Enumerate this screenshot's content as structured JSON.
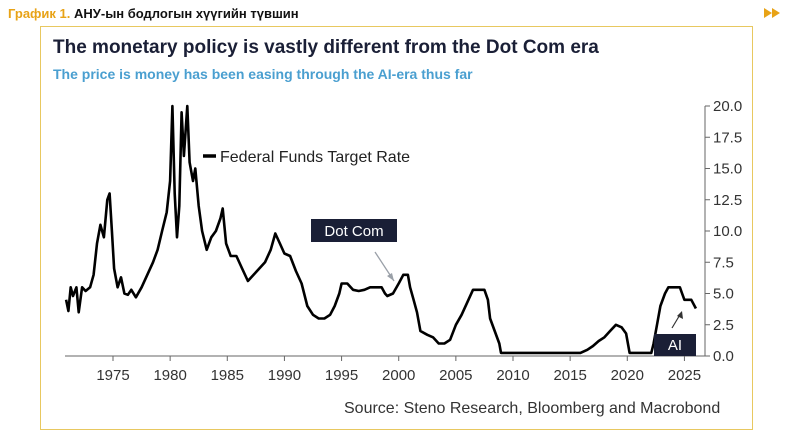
{
  "header": {
    "label": "График 1.",
    "title": "АНУ-ын бодлогын хүүгийн түвшин",
    "icon": "double-arrow-right-icon",
    "accent_color": "#e8a317"
  },
  "chart_data": {
    "type": "line",
    "title": "The monetary policy is vastly different from the Dot Com era",
    "subtitle": "The price is money has been easing through the AI-era thus far",
    "source": "Source: Steno Research, Bloomberg and Macrobond",
    "xlabel": "",
    "ylabel": "",
    "xlim": [
      1970.8,
      2026.8
    ],
    "ylim": [
      0,
      20
    ],
    "x_ticks": [
      1975,
      1980,
      1985,
      1990,
      1995,
      2000,
      2005,
      2010,
      2015,
      2020,
      2025
    ],
    "y_ticks": [
      0.0,
      2.5,
      5.0,
      7.5,
      10.0,
      12.5,
      15.0,
      17.5,
      20.0
    ],
    "y_tick_labels": [
      "0.0",
      "2.5",
      "5.0",
      "7.5",
      "10.0",
      "12.5",
      "15.0",
      "17.5",
      "20.0"
    ],
    "grid": false,
    "y_axis_side": "right",
    "legend_position": "top-left of plot",
    "series": [
      {
        "name": "Federal Funds Target Rate",
        "color": "#000000",
        "points": [
          [
            1970.9,
            4.5
          ],
          [
            1971.1,
            3.6
          ],
          [
            1971.3,
            5.5
          ],
          [
            1971.5,
            4.8
          ],
          [
            1971.8,
            5.5
          ],
          [
            1972.0,
            3.5
          ],
          [
            1972.3,
            5.5
          ],
          [
            1972.6,
            5.2
          ],
          [
            1973.0,
            5.5
          ],
          [
            1973.3,
            6.5
          ],
          [
            1973.6,
            9.0
          ],
          [
            1973.9,
            10.5
          ],
          [
            1974.2,
            9.5
          ],
          [
            1974.5,
            12.5
          ],
          [
            1974.7,
            13.0
          ],
          [
            1974.9,
            10.0
          ],
          [
            1975.1,
            7.0
          ],
          [
            1975.4,
            5.5
          ],
          [
            1975.7,
            6.3
          ],
          [
            1976.0,
            5.0
          ],
          [
            1976.3,
            4.9
          ],
          [
            1976.6,
            5.3
          ],
          [
            1977.0,
            4.7
          ],
          [
            1977.5,
            5.5
          ],
          [
            1978.0,
            6.5
          ],
          [
            1978.5,
            7.5
          ],
          [
            1978.9,
            8.5
          ],
          [
            1979.3,
            10.0
          ],
          [
            1979.7,
            11.5
          ],
          [
            1980.0,
            14.0
          ],
          [
            1980.2,
            20.0
          ],
          [
            1980.4,
            13.0
          ],
          [
            1980.6,
            9.5
          ],
          [
            1980.8,
            12.0
          ],
          [
            1981.0,
            19.5
          ],
          [
            1981.2,
            16.0
          ],
          [
            1981.5,
            20.0
          ],
          [
            1981.7,
            15.5
          ],
          [
            1982.0,
            14.0
          ],
          [
            1982.2,
            15.0
          ],
          [
            1982.5,
            12.0
          ],
          [
            1982.8,
            10.0
          ],
          [
            1983.2,
            8.5
          ],
          [
            1983.6,
            9.5
          ],
          [
            1984.0,
            10.0
          ],
          [
            1984.4,
            11.0
          ],
          [
            1984.6,
            11.8
          ],
          [
            1984.9,
            9.0
          ],
          [
            1985.3,
            8.0
          ],
          [
            1985.8,
            8.0
          ],
          [
            1986.3,
            7.0
          ],
          [
            1986.8,
            6.0
          ],
          [
            1987.3,
            6.5
          ],
          [
            1987.8,
            7.0
          ],
          [
            1988.3,
            7.5
          ],
          [
            1988.8,
            8.5
          ],
          [
            1989.2,
            9.8
          ],
          [
            1989.6,
            9.0
          ],
          [
            1990.0,
            8.2
          ],
          [
            1990.5,
            8.0
          ],
          [
            1991.0,
            6.8
          ],
          [
            1991.5,
            5.8
          ],
          [
            1992.0,
            4.0
          ],
          [
            1992.5,
            3.3
          ],
          [
            1993.0,
            3.0
          ],
          [
            1993.5,
            3.0
          ],
          [
            1994.0,
            3.3
          ],
          [
            1994.4,
            4.0
          ],
          [
            1994.8,
            5.0
          ],
          [
            1995.0,
            5.8
          ],
          [
            1995.5,
            5.8
          ],
          [
            1996.0,
            5.3
          ],
          [
            1996.5,
            5.2
          ],
          [
            1997.0,
            5.3
          ],
          [
            1997.5,
            5.5
          ],
          [
            1998.0,
            5.5
          ],
          [
            1998.5,
            5.5
          ],
          [
            1998.8,
            5.0
          ],
          [
            1999.0,
            4.8
          ],
          [
            1999.5,
            5.0
          ],
          [
            2000.0,
            5.8
          ],
          [
            2000.4,
            6.5
          ],
          [
            2000.8,
            6.5
          ],
          [
            2001.0,
            5.5
          ],
          [
            2001.3,
            4.5
          ],
          [
            2001.6,
            3.5
          ],
          [
            2001.9,
            2.0
          ],
          [
            2002.5,
            1.7
          ],
          [
            2003.0,
            1.5
          ],
          [
            2003.5,
            1.0
          ],
          [
            2004.0,
            1.0
          ],
          [
            2004.5,
            1.3
          ],
          [
            2005.0,
            2.5
          ],
          [
            2005.5,
            3.3
          ],
          [
            2006.0,
            4.3
          ],
          [
            2006.5,
            5.3
          ],
          [
            2007.0,
            5.3
          ],
          [
            2007.5,
            5.3
          ],
          [
            2007.8,
            4.5
          ],
          [
            2008.0,
            3.0
          ],
          [
            2008.4,
            2.0
          ],
          [
            2008.8,
            1.0
          ],
          [
            2008.95,
            0.25
          ],
          [
            2012.0,
            0.25
          ],
          [
            2015.9,
            0.25
          ],
          [
            2016.5,
            0.5
          ],
          [
            2017.0,
            0.8
          ],
          [
            2017.5,
            1.2
          ],
          [
            2018.0,
            1.5
          ],
          [
            2018.5,
            2.0
          ],
          [
            2019.0,
            2.5
          ],
          [
            2019.5,
            2.3
          ],
          [
            2019.9,
            1.8
          ],
          [
            2020.2,
            0.25
          ],
          [
            2021.0,
            0.25
          ],
          [
            2022.1,
            0.25
          ],
          [
            2022.3,
            1.0
          ],
          [
            2022.6,
            2.5
          ],
          [
            2022.9,
            4.0
          ],
          [
            2023.3,
            5.0
          ],
          [
            2023.6,
            5.5
          ],
          [
            2024.0,
            5.5
          ],
          [
            2024.6,
            5.5
          ],
          [
            2024.8,
            5.0
          ],
          [
            2025.0,
            4.5
          ],
          [
            2025.6,
            4.5
          ],
          [
            2026.0,
            3.8
          ]
        ]
      }
    ],
    "annotations": [
      {
        "text": "Dot Com",
        "points_to": [
          2000.0,
          5.9
        ]
      },
      {
        "text": "AI",
        "points_to": [
          2025.0,
          4.3
        ]
      }
    ]
  }
}
